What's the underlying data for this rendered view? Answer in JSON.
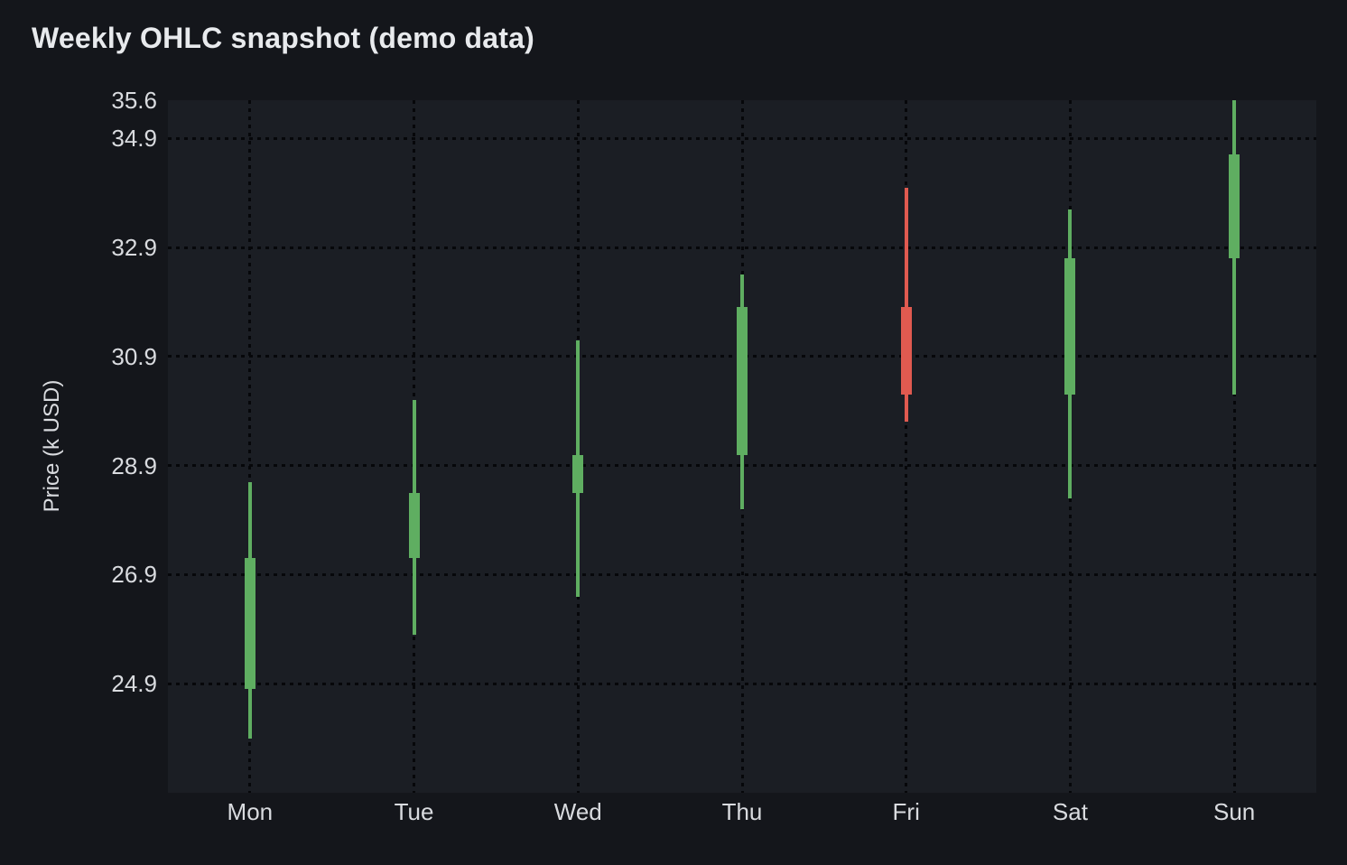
{
  "title": "Weekly OHLC snapshot (demo data)",
  "theme": {
    "page_bg": "#14161b",
    "plot_bg": "#1b1e24",
    "grid_dot": "#06070a",
    "title_color": "#e8eaed",
    "tick_color": "#d9dbdf"
  },
  "chart_data": {
    "type": "candlestick",
    "title": "Weekly OHLC snapshot (demo data)",
    "xlabel": "",
    "ylabel": "Price (k USD)",
    "categories": [
      "Mon",
      "Tue",
      "Wed",
      "Thu",
      "Fri",
      "Sat",
      "Sun"
    ],
    "candles": [
      {
        "day": "Mon",
        "open": 24.8,
        "high": 28.6,
        "low": 23.9,
        "close": 27.2,
        "direction": "up"
      },
      {
        "day": "Tue",
        "open": 27.2,
        "high": 30.1,
        "low": 25.8,
        "close": 28.4,
        "direction": "up"
      },
      {
        "day": "Wed",
        "open": 28.4,
        "high": 31.2,
        "low": 26.5,
        "close": 29.1,
        "direction": "up"
      },
      {
        "day": "Thu",
        "open": 29.1,
        "high": 32.4,
        "low": 28.1,
        "close": 31.8,
        "direction": "up"
      },
      {
        "day": "Fri",
        "open": 31.8,
        "high": 34.0,
        "low": 29.7,
        "close": 30.2,
        "direction": "down"
      },
      {
        "day": "Sat",
        "open": 30.2,
        "high": 33.6,
        "low": 28.3,
        "close": 32.7,
        "direction": "up"
      },
      {
        "day": "Sun",
        "open": 32.7,
        "high": 35.6,
        "low": 30.2,
        "close": 34.6,
        "direction": "up"
      }
    ],
    "ylim": [
      22.9,
      35.6
    ],
    "yticks": [
      35.6,
      34.9,
      32.9,
      30.9,
      28.9,
      26.9,
      24.9
    ],
    "yticks_with_grid": [
      34.9,
      32.9,
      30.9,
      28.9,
      26.9,
      24.9
    ],
    "grid": "dotted, horizontal at y-ticks and vertical at each category",
    "legend": null,
    "colors": {
      "up": "#5fae61",
      "down": "#e05a50"
    }
  }
}
